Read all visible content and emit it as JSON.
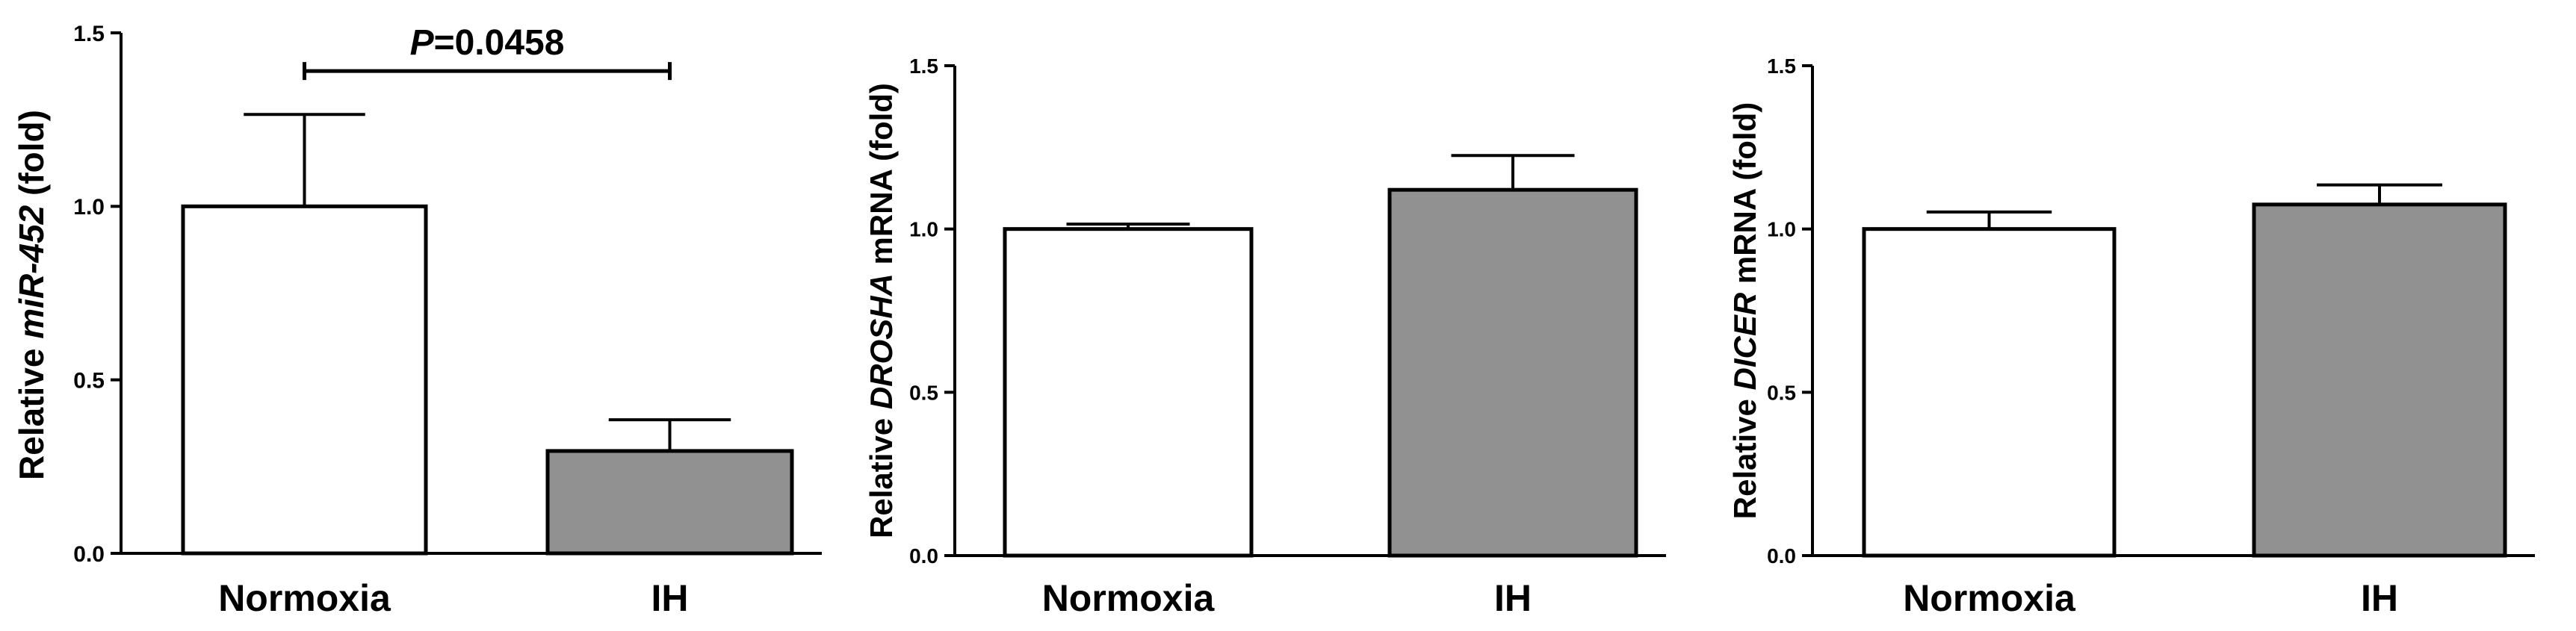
{
  "chart_data": [
    {
      "type": "bar",
      "categories": [
        "Normoxia",
        "IH"
      ],
      "values": [
        1.0,
        0.295
      ],
      "error": [
        0.265,
        0.09
      ],
      "ylabel_parts": [
        {
          "text": "Relative ",
          "italic": false
        },
        {
          "text": "miR-452",
          "italic": true
        },
        {
          "text": " (fold)",
          "italic": false
        }
      ],
      "ylim": [
        0,
        1.5
      ],
      "yticks": [
        0.0,
        0.5,
        1.0,
        1.5
      ],
      "ytick_labels": [
        "0.0",
        "0.5",
        "1.0",
        "1.5"
      ],
      "bar_colors": [
        "#ffffff",
        "#919191"
      ],
      "annotation": {
        "p_symbol": "P",
        "p_value": "=0.0458",
        "between": [
          "Normoxia",
          "IH"
        ],
        "bracket_y": 1.39
      }
    },
    {
      "type": "bar",
      "categories": [
        "Normoxia",
        "IH"
      ],
      "values": [
        1.0,
        1.12
      ],
      "error": [
        0.015,
        0.105
      ],
      "ylabel_parts": [
        {
          "text": "Relative ",
          "italic": false
        },
        {
          "text": "DROSHA",
          "italic": true
        },
        {
          "text": " mRNA (fold)",
          "italic": false
        }
      ],
      "ylim": [
        0,
        1.5
      ],
      "yticks": [
        0.0,
        0.5,
        1.0,
        1.5
      ],
      "ytick_labels": [
        "0.0",
        "0.5",
        "1.0",
        "1.5"
      ],
      "bar_colors": [
        "#ffffff",
        "#919191"
      ]
    },
    {
      "type": "bar",
      "categories": [
        "Normoxia",
        "IH"
      ],
      "values": [
        1.0,
        1.075
      ],
      "error": [
        0.052,
        0.06
      ],
      "ylabel_parts": [
        {
          "text": "Relative ",
          "italic": false
        },
        {
          "text": "DICER",
          "italic": true
        },
        {
          "text": " mRNA (fold)",
          "italic": false
        }
      ],
      "ylim": [
        0,
        1.5
      ],
      "yticks": [
        0.0,
        0.5,
        1.0,
        1.5
      ],
      "ytick_labels": [
        "0.0",
        "0.5",
        "1.0",
        "1.5"
      ],
      "bar_colors": [
        "#ffffff",
        "#919191"
      ]
    }
  ]
}
